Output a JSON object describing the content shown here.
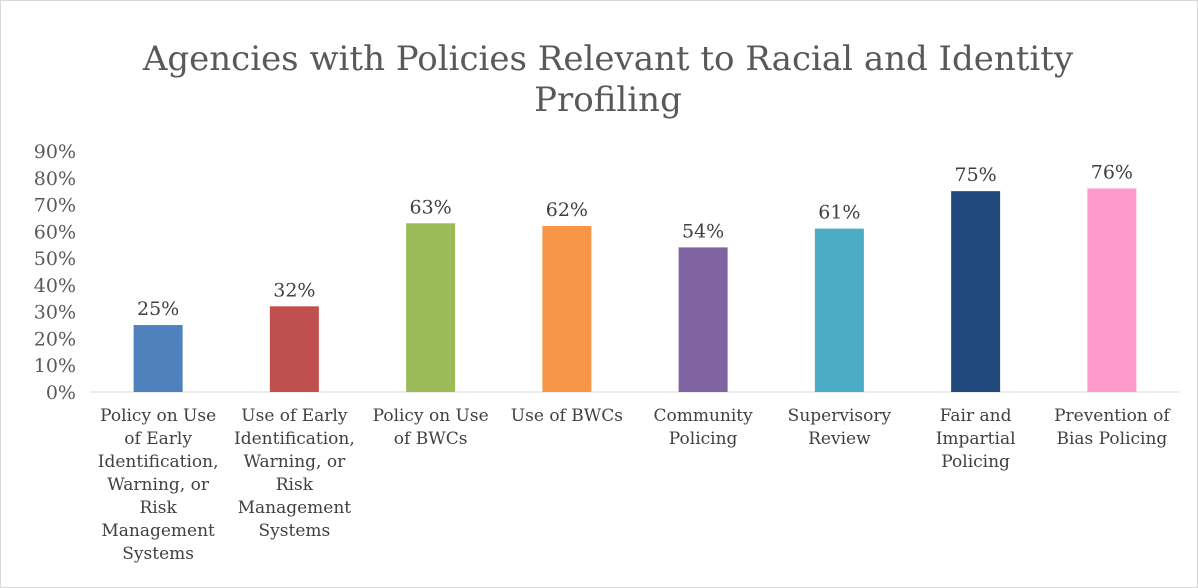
{
  "chart_data": {
    "type": "bar",
    "title_lines": [
      "Agencies with Policies Relevant to Racial and Identity",
      "Profiling"
    ],
    "categories": [
      [
        "Policy on Use",
        "of Early",
        "Identification,",
        "Warning, or",
        "Risk",
        "Management",
        "Systems"
      ],
      [
        "Use of Early",
        "Identification,",
        "Warning, or",
        "Risk",
        "Management",
        "Systems"
      ],
      [
        "Policy on Use",
        "of BWCs"
      ],
      [
        "Use of BWCs"
      ],
      [
        "Community",
        "Policing"
      ],
      [
        "Supervisory",
        "Review"
      ],
      [
        "Fair and",
        "Impartial",
        "Policing"
      ],
      [
        "Prevention of",
        "Bias Policing"
      ]
    ],
    "values": [
      25,
      32,
      63,
      62,
      54,
      61,
      75,
      76
    ],
    "data_labels": [
      "25%",
      "32%",
      "63%",
      "62%",
      "54%",
      "61%",
      "75%",
      "76%"
    ],
    "colors": [
      "#4f81bd",
      "#c0504d",
      "#9bbb59",
      "#f79646",
      "#8064a2",
      "#4bacc6",
      "#1f497d",
      "#ff99cc"
    ],
    "ylim": [
      0,
      90
    ],
    "yticks": [
      0,
      10,
      20,
      30,
      40,
      50,
      60,
      70,
      80,
      90
    ],
    "ytick_labels": [
      "0%",
      "10%",
      "20%",
      "30%",
      "40%",
      "50%",
      "60%",
      "70%",
      "80%",
      "90%"
    ],
    "xlabel": "",
    "ylabel": "",
    "legend": "none",
    "grid": false
  }
}
